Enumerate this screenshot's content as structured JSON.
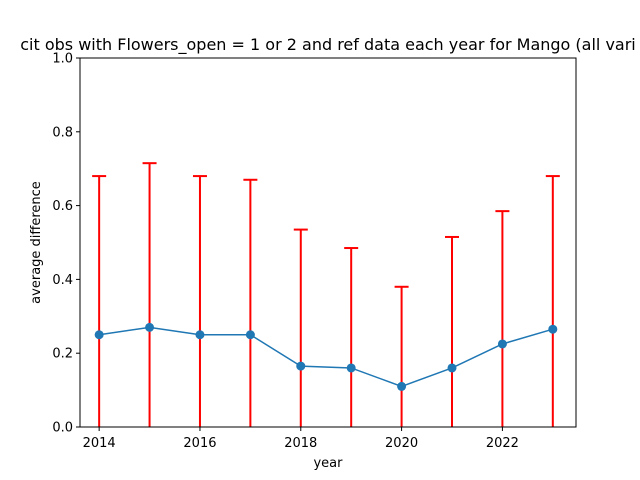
{
  "chart_data": {
    "type": "line",
    "title": "cit obs with Flowers_open = 1 or 2 and ref data each year for Mango (all vari",
    "xlabel": "year",
    "ylabel": "average difference",
    "xlim": [
      2013.62,
      2023.46
    ],
    "ylim": [
      0.0,
      1.0
    ],
    "x_ticks": [
      2014,
      2016,
      2018,
      2020,
      2022
    ],
    "y_ticks": [
      0.0,
      0.2,
      0.4,
      0.6,
      0.8,
      1.0
    ],
    "grid": false,
    "series": [
      {
        "color": "#1f77b4",
        "x": [
          2014,
          2015,
          2016,
          2017,
          2018,
          2019,
          2020,
          2021,
          2022,
          2023
        ],
        "values": [
          0.25,
          0.27,
          0.25,
          0.25,
          0.165,
          0.16,
          0.11,
          0.16,
          0.225,
          0.265
        ],
        "error_upper": [
          0.68,
          0.715,
          0.68,
          0.67,
          0.535,
          0.485,
          0.38,
          0.515,
          0.585,
          0.68
        ],
        "error_color": "#ff0000"
      }
    ]
  }
}
